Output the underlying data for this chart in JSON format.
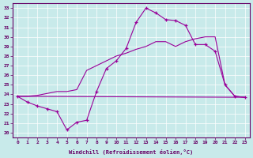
{
  "bg_color": "#c8eaea",
  "line_color": "#990099",
  "grid_color": "#ffffff",
  "xlabel": "Windchill (Refroidissement éolien,°C)",
  "xlim": [
    -0.5,
    23.5
  ],
  "ylim": [
    19.5,
    33.5
  ],
  "xticks": [
    0,
    1,
    2,
    3,
    4,
    5,
    6,
    7,
    8,
    9,
    10,
    11,
    12,
    13,
    14,
    15,
    16,
    17,
    18,
    19,
    20,
    21,
    22,
    23
  ],
  "yticks": [
    20,
    21,
    22,
    23,
    24,
    25,
    26,
    27,
    28,
    29,
    30,
    31,
    32,
    33
  ],
  "curve1_x": [
    0,
    1,
    2,
    3,
    4,
    5,
    6,
    7,
    8,
    9,
    10,
    11,
    12,
    13,
    14,
    15,
    16,
    17,
    18,
    19,
    20,
    21,
    22,
    23
  ],
  "curve1_y": [
    23.8,
    23.2,
    22.8,
    22.5,
    22.2,
    20.3,
    21.1,
    21.3,
    24.3,
    26.7,
    27.5,
    28.8,
    31.5,
    33.0,
    32.5,
    31.8,
    31.7,
    31.2,
    29.2,
    29.2,
    28.5,
    25.0,
    23.8,
    23.7
  ],
  "curve2_x": [
    0,
    1,
    2,
    3,
    4,
    5,
    6,
    7,
    8,
    9,
    10,
    11,
    12,
    13,
    14,
    15,
    16,
    17,
    18,
    19,
    20,
    21,
    22,
    23
  ],
  "curve2_y": [
    23.8,
    23.8,
    23.9,
    24.1,
    24.3,
    24.3,
    24.5,
    26.5,
    27.0,
    27.5,
    28.0,
    28.3,
    28.7,
    29.0,
    29.5,
    29.5,
    29.0,
    29.5,
    29.8,
    30.0,
    30.0,
    25.0,
    23.8,
    23.7
  ],
  "curve3_x": [
    0,
    23
  ],
  "curve3_y": [
    23.8,
    23.7
  ]
}
